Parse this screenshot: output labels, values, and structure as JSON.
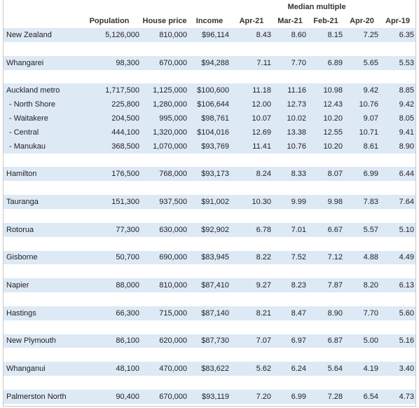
{
  "header": {
    "group_label": "Median multiple",
    "columns": [
      "",
      "Population",
      "House price",
      "Income",
      "Apr-21",
      "Mar-21",
      "Feb-21",
      "Apr-20",
      "Apr-19"
    ]
  },
  "groups": [
    [
      [
        "New Zealand",
        "5,126,000",
        "810,000",
        "$96,114",
        "8.43",
        "8.60",
        "8.15",
        "7.25",
        "6.35"
      ]
    ],
    [
      [
        "Whangarei",
        "98,300",
        "670,000",
        "$94,288",
        "7.11",
        "7.70",
        "6.89",
        "5.65",
        "5.53"
      ]
    ],
    [
      [
        "Auckland metro",
        "1,717,500",
        "1,125,000",
        "$100,600",
        "11.18",
        "11.16",
        "10.98",
        "9.42",
        "8.85"
      ],
      [
        "- North Shore",
        "225,800",
        "1,280,000",
        "$106,644",
        "12.00",
        "12.73",
        "12.43",
        "10.76",
        "9.42"
      ],
      [
        "- Waitakere",
        "204,500",
        "995,000",
        "$98,761",
        "10.07",
        "10.02",
        "10.20",
        "9.07",
        "8.05"
      ],
      [
        "- Central",
        "444,100",
        "1,320,000",
        "$104,016",
        "12.69",
        "13.38",
        "12.55",
        "10.71",
        "9.41"
      ],
      [
        "- Manukau",
        "368,500",
        "1,070,000",
        "$93,769",
        "11.41",
        "10.76",
        "10.20",
        "8.61",
        "8.90"
      ]
    ],
    [
      [
        "Hamilton",
        "176,500",
        "768,000",
        "$93,173",
        "8.24",
        "8.33",
        "8.07",
        "6.99",
        "6.44"
      ]
    ],
    [
      [
        "Tauranga",
        "151,300",
        "937,500",
        "$91,002",
        "10.30",
        "9.99",
        "9.98",
        "7.83",
        "7.64"
      ]
    ],
    [
      [
        "Rotorua",
        "77,300",
        "630,000",
        "$92,902",
        "6.78",
        "7.01",
        "6.67",
        "5.57",
        "5.10"
      ]
    ],
    [
      [
        "Gisborne",
        "50,700",
        "690,000",
        "$83,945",
        "8.22",
        "7.52",
        "7.12",
        "4.88",
        "4.49"
      ]
    ],
    [
      [
        "Napier",
        "88,000",
        "810,000",
        "$87,410",
        "9.27",
        "8.23",
        "7.87",
        "8.20",
        "6.13"
      ]
    ],
    [
      [
        "Hastings",
        "66,300",
        "715,000",
        "$87,140",
        "8.21",
        "8.47",
        "8.90",
        "7.70",
        "5.60"
      ]
    ],
    [
      [
        "New Plymouth",
        "86,100",
        "620,000",
        "$87,730",
        "7.07",
        "6.97",
        "6.87",
        "5.00",
        "5.16"
      ]
    ],
    [
      [
        "Whanganui",
        "48,100",
        "470,000",
        "$83,622",
        "5.62",
        "6.24",
        "5.64",
        "4.19",
        "3.40"
      ]
    ],
    [
      [
        "Palmerston North",
        "90,400",
        "670,000",
        "$93,119",
        "7.20",
        "6.99",
        "7.28",
        "6.54",
        "4.73"
      ]
    ]
  ]
}
